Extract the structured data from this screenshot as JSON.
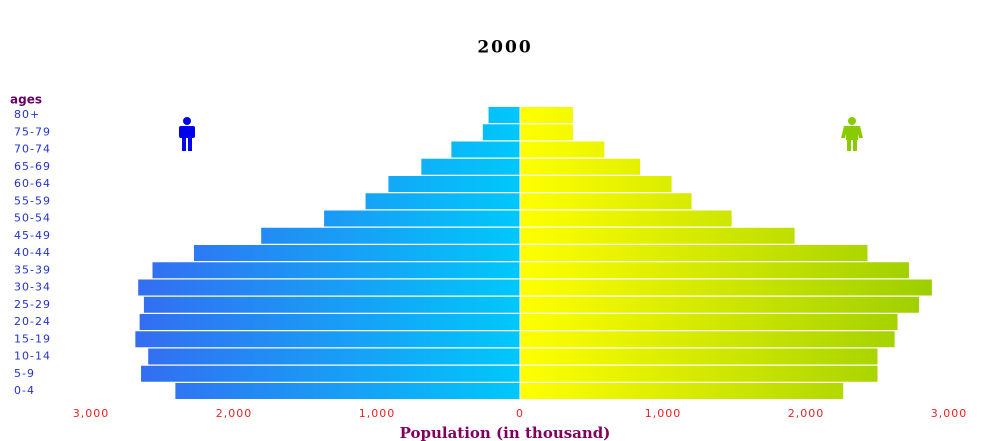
{
  "chart_data": {
    "type": "pyramid",
    "title": "2000",
    "y_label": "ages",
    "x_label": "Population (in thousand)",
    "categories": [
      "0-4",
      "5-9",
      "10-14",
      "15-19",
      "20-24",
      "25-29",
      "30-34",
      "35-39",
      "40-44",
      "45-49",
      "50-54",
      "55-59",
      "60-64",
      "65-69",
      "70-74",
      "75-79",
      "80+"
    ],
    "series": [
      {
        "color": "#3a62f0",
        "values": [
          2410,
          2650,
          2600,
          2690,
          2660,
          2630,
          2670,
          2570,
          2280,
          1810,
          1370,
          1080,
          920,
          690,
          480,
          260,
          220
        ]
      },
      {
        "color": "#99cc00",
        "values": [
          2260,
          2500,
          2500,
          2620,
          2640,
          2790,
          2880,
          2720,
          2430,
          1920,
          1480,
          1200,
          1060,
          840,
          590,
          370,
          370
        ]
      }
    ],
    "xlim": [
      -3000,
      3000
    ],
    "xticks": [
      {
        "value": -3000,
        "label": "3,000"
      },
      {
        "value": -2000,
        "label": "2,000"
      },
      {
        "value": -1000,
        "label": "1,000"
      },
      0,
      {
        "value": 1000,
        "label": "1,000"
      },
      {
        "value": 2000,
        "label": "2,000"
      },
      {
        "value": 3000,
        "label": "3,000"
      }
    ]
  }
}
